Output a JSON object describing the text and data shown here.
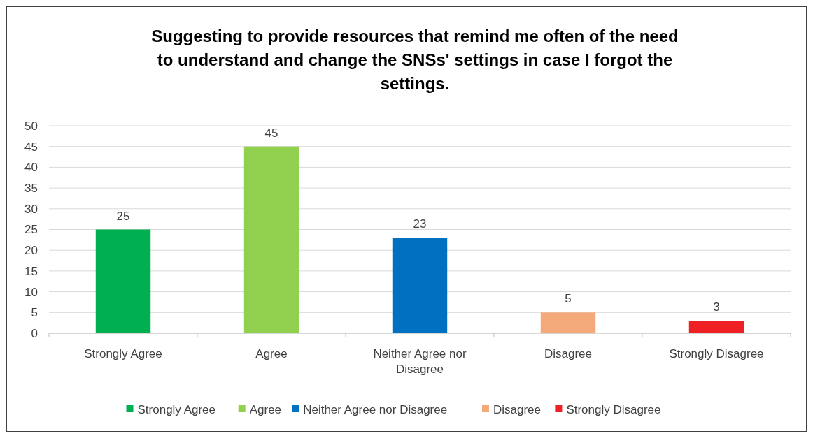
{
  "chart_data": {
    "type": "bar",
    "title": "Suggesting to provide resources that remind me often of the need to understand and change the SNSs' settings in case I forgot the settings.",
    "categories": [
      "Strongly Agree",
      "Agree",
      "Neither Agree nor Disagree",
      "Disagree",
      "Strongly Disagree"
    ],
    "stacked": true,
    "series": [
      {
        "name": "Strongly Agree",
        "color": "#00b050",
        "values": [
          25,
          null,
          null,
          null,
          null
        ]
      },
      {
        "name": "Agree",
        "color": "#92d050",
        "values": [
          null,
          45,
          null,
          null,
          null
        ]
      },
      {
        "name": "Neither Agree nor Disagree",
        "color": "#0070c0",
        "values": [
          null,
          null,
          23,
          null,
          null
        ]
      },
      {
        "name": "Disagree",
        "color": "#f4a97a",
        "values": [
          null,
          null,
          null,
          5,
          null
        ]
      },
      {
        "name": "Strongly Disagree",
        "color": "#ee2024",
        "values": [
          null,
          null,
          null,
          null,
          3
        ]
      }
    ],
    "ylim": [
      0,
      50
    ],
    "yticks": [
      0,
      5,
      10,
      15,
      20,
      25,
      30,
      35,
      40,
      45,
      50
    ],
    "grid": "y",
    "legend": "bottom",
    "data_labels": true
  }
}
